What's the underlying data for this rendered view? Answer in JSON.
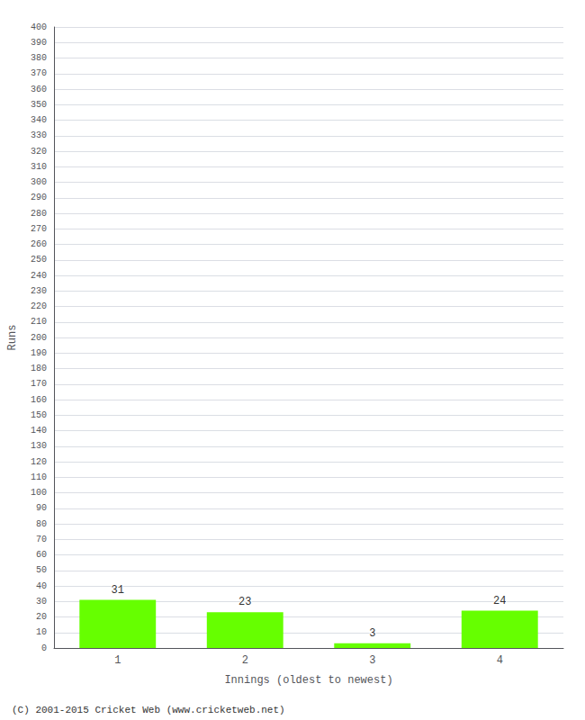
{
  "chart_data": {
    "type": "bar",
    "categories": [
      "1",
      "2",
      "3",
      "4"
    ],
    "values": [
      31,
      23,
      3,
      24
    ],
    "color": "#66ff00",
    "data_labels": true,
    "xlabel": "Innings (oldest to newest)",
    "ylabel": "Runs",
    "ylim": [
      0,
      400
    ],
    "yticks": [
      0,
      10,
      20,
      30,
      40,
      50,
      60,
      70,
      80,
      90,
      100,
      110,
      120,
      130,
      140,
      150,
      160,
      170,
      180,
      190,
      200,
      210,
      220,
      230,
      240,
      250,
      260,
      270,
      280,
      290,
      300,
      310,
      320,
      330,
      340,
      350,
      360,
      370,
      380,
      390,
      400
    ],
    "grid": true,
    "annotations": [
      "(C) 2001-2015 Cricket Web (www.cricketweb.net)"
    ]
  }
}
